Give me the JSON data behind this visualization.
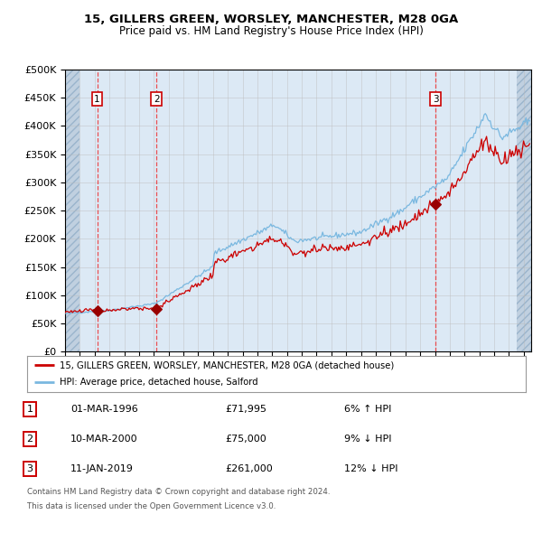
{
  "title": "15, GILLERS GREEN, WORSLEY, MANCHESTER, M28 0GA",
  "subtitle": "Price paid vs. HM Land Registry's House Price Index (HPI)",
  "legend_line1": "15, GILLERS GREEN, WORSLEY, MANCHESTER, M28 0GA (detached house)",
  "legend_line2": "HPI: Average price, detached house, Salford",
  "footer_line1": "Contains HM Land Registry data © Crown copyright and database right 2024.",
  "footer_line2": "This data is licensed under the Open Government Licence v3.0.",
  "transactions": [
    {
      "num": 1,
      "date": "01-MAR-1996",
      "price": 71995,
      "pct": "6%",
      "dir": "↑"
    },
    {
      "num": 2,
      "date": "10-MAR-2000",
      "price": 75000,
      "pct": "9%",
      "dir": "↓"
    },
    {
      "num": 3,
      "date": "11-JAN-2019",
      "price": 261000,
      "pct": "12%",
      "dir": "↓"
    }
  ],
  "transaction_years": [
    1996.17,
    2000.19,
    2019.03
  ],
  "transaction_prices": [
    71995,
    75000,
    261000
  ],
  "hpi_color": "#7ab8e0",
  "price_color": "#cc0000",
  "marker_color": "#990000",
  "vline_color": "#ee3333",
  "background_color": "#dce9f5",
  "hatch_color": "#c0d0e0",
  "grid_color": "#bbbbbb",
  "ylim": [
    0,
    500000
  ],
  "xlim_start": 1994.0,
  "xlim_end": 2025.5
}
